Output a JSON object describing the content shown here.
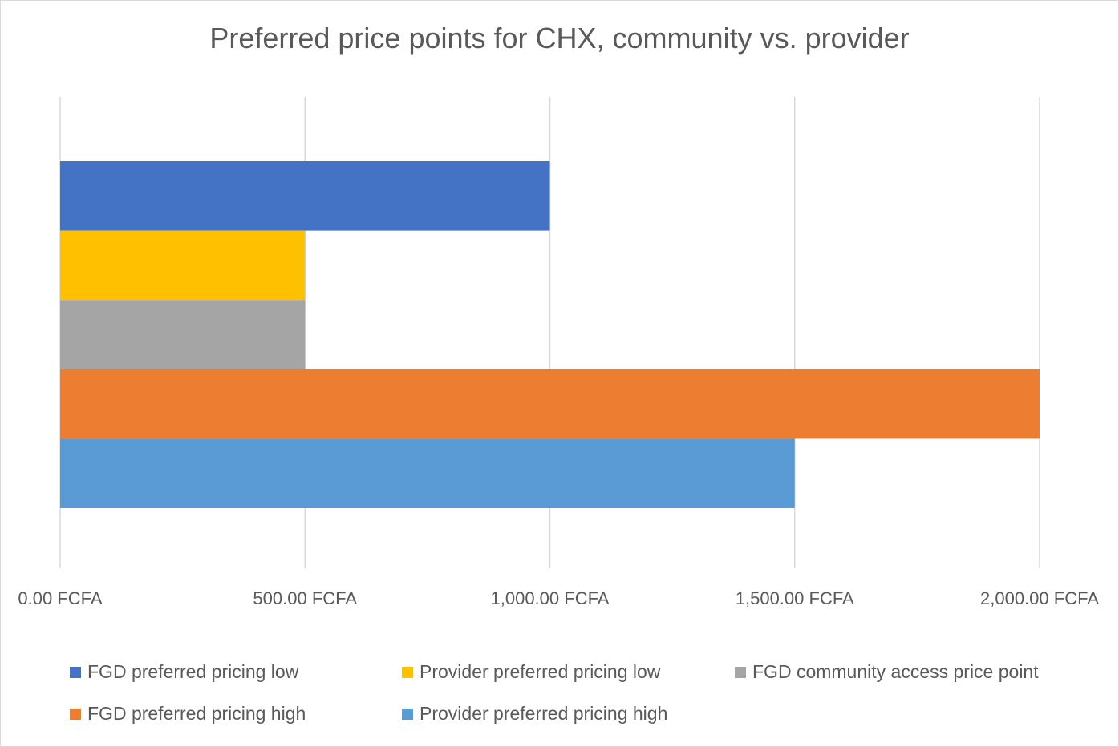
{
  "chart_data": {
    "type": "bar",
    "orientation": "horizontal",
    "title": "Preferred price points for CHX, community vs. provider",
    "xlabel": "",
    "ylabel": "",
    "xlim": [
      0,
      2000
    ],
    "x_ticks": [
      0,
      500,
      1000,
      1500,
      2000
    ],
    "x_tick_labels": [
      "0.00 FCFA",
      "500.00 FCFA",
      "1,000.00 FCFA",
      "1,500.00 FCFA",
      "2,000.00 FCFA"
    ],
    "grid": "vertical",
    "legend_position": "bottom",
    "series": [
      {
        "name": "FGD preferred pricing low",
        "value": 1000,
        "color": "#4472c4"
      },
      {
        "name": "Provider preferred pricing low",
        "value": 500,
        "color": "#ffc000"
      },
      {
        "name": "FGD community access price point",
        "value": 500,
        "color": "#a5a5a5"
      },
      {
        "name": "FGD preferred pricing high",
        "value": 2000,
        "color": "#ed7d31"
      },
      {
        "name": "Provider preferred pricing high",
        "value": 1500,
        "color": "#5b9bd5"
      }
    ]
  }
}
